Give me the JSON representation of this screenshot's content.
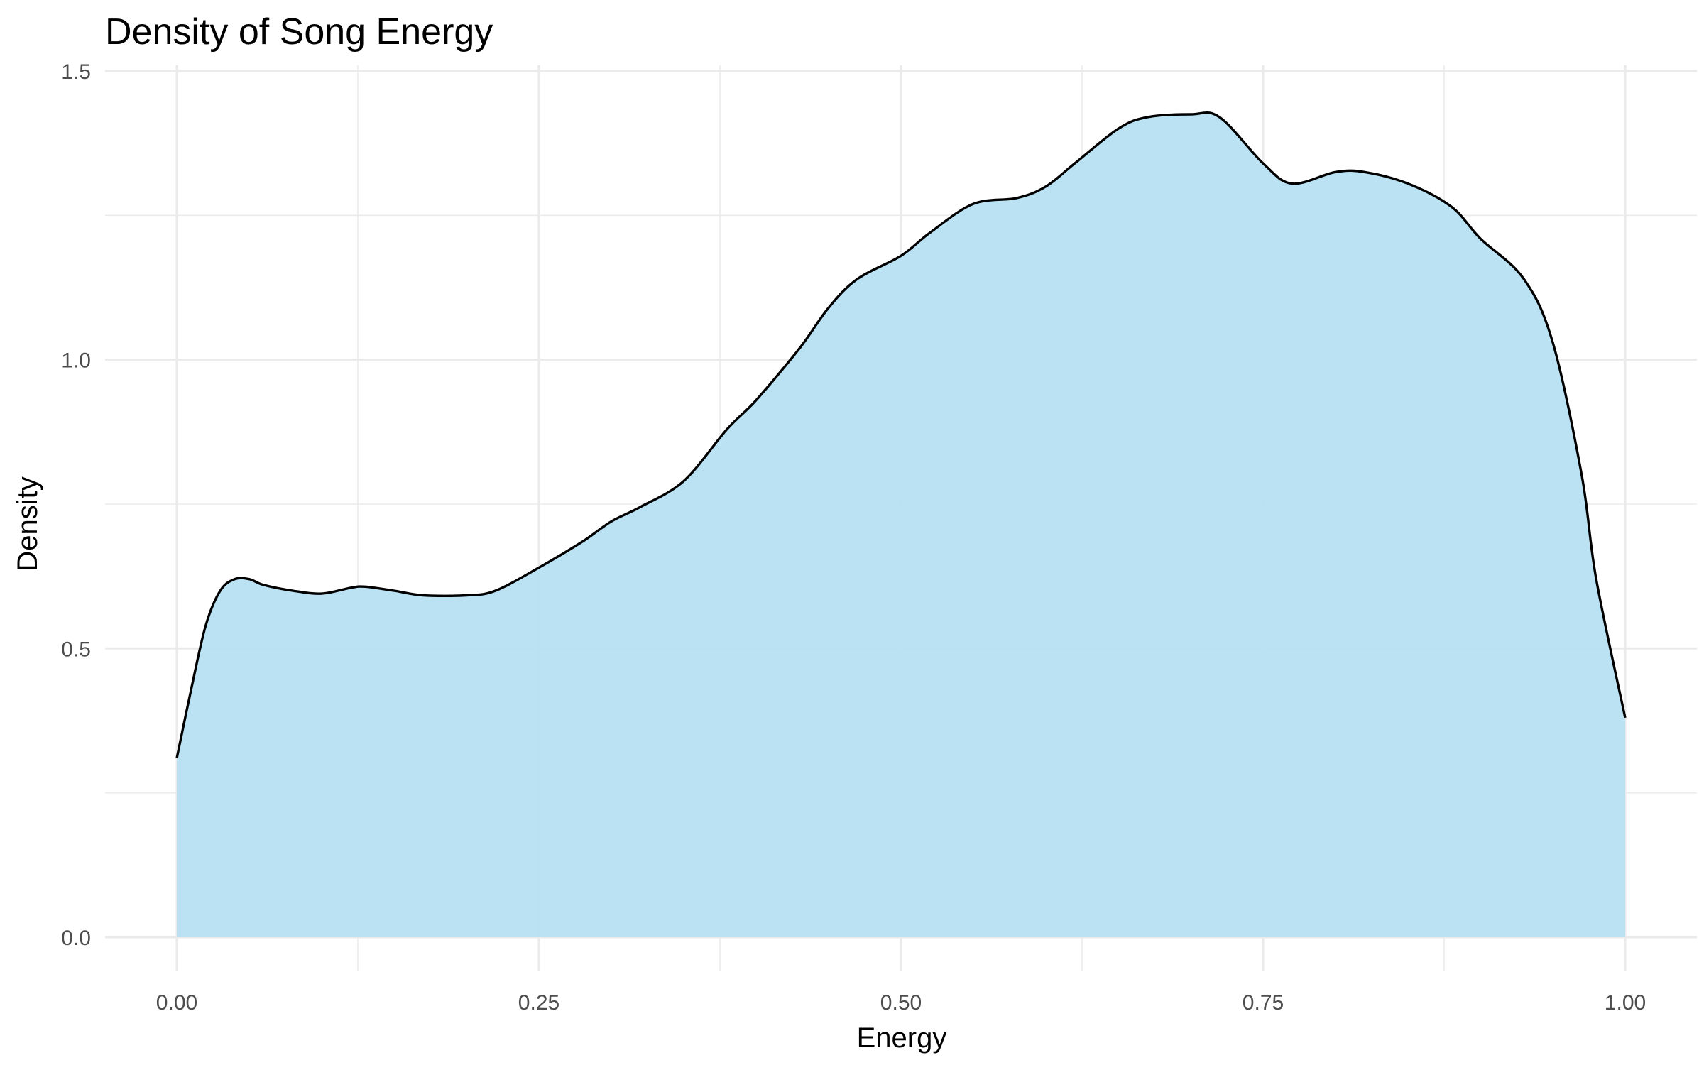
{
  "chart_data": {
    "type": "area",
    "title": "Density of Song Energy",
    "xlabel": "Energy",
    "ylabel": "Density",
    "xlim": [
      0,
      1
    ],
    "ylim": [
      0,
      1.5
    ],
    "x_ticks": [
      0,
      0.25,
      0.5,
      0.75,
      1.0
    ],
    "x_tick_labels": [
      "0.00",
      "0.25",
      "0.50",
      "0.75",
      "1.00"
    ],
    "y_ticks": [
      0,
      0.5,
      1.0,
      1.5
    ],
    "y_tick_labels": [
      "0.0",
      "0.5",
      "1.0",
      "1.5"
    ],
    "grid": true,
    "fill_color": "#b7e0f2",
    "line_color": "#000000",
    "series": [
      {
        "x": [
          0.0,
          0.01,
          0.02,
          0.03,
          0.04,
          0.05,
          0.06,
          0.08,
          0.1,
          0.12,
          0.13,
          0.15,
          0.17,
          0.2,
          0.22,
          0.25,
          0.28,
          0.3,
          0.32,
          0.35,
          0.38,
          0.4,
          0.43,
          0.45,
          0.47,
          0.5,
          0.52,
          0.55,
          0.58,
          0.6,
          0.62,
          0.65,
          0.67,
          0.7,
          0.72,
          0.75,
          0.77,
          0.8,
          0.82,
          0.85,
          0.88,
          0.9,
          0.93,
          0.95,
          0.97,
          0.98,
          1.0
        ],
        "y": [
          0.31,
          0.43,
          0.54,
          0.6,
          0.62,
          0.62,
          0.61,
          0.6,
          0.595,
          0.605,
          0.607,
          0.6,
          0.592,
          0.592,
          0.6,
          0.64,
          0.685,
          0.72,
          0.745,
          0.79,
          0.88,
          0.93,
          1.02,
          1.09,
          1.14,
          1.18,
          1.22,
          1.27,
          1.28,
          1.3,
          1.34,
          1.4,
          1.42,
          1.425,
          1.42,
          1.34,
          1.305,
          1.325,
          1.325,
          1.305,
          1.265,
          1.21,
          1.14,
          1.03,
          0.8,
          0.62,
          0.38
        ]
      }
    ]
  }
}
